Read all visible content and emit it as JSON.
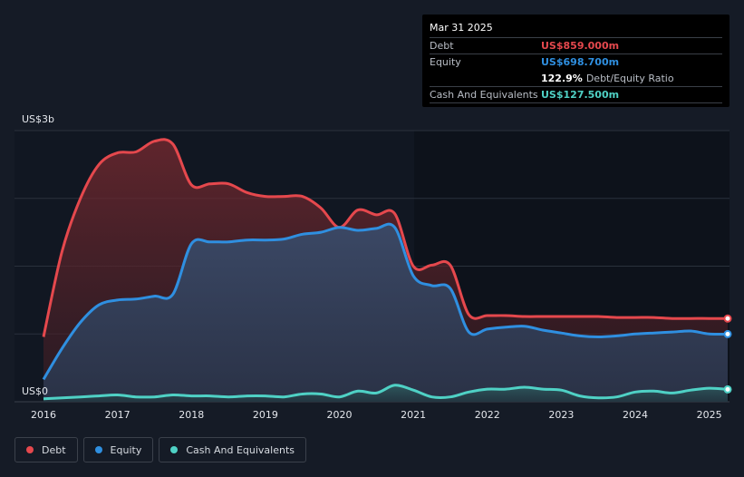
{
  "tooltip": {
    "date": "Mar 31 2025",
    "debt_label": "Debt",
    "debt_value": "US$859.000m",
    "equity_label": "Equity",
    "equity_value": "US$698.700m",
    "ratio_value": "122.9%",
    "ratio_text": "Debt/Equity Ratio",
    "cash_label": "Cash And Equivalents",
    "cash_value": "US$127.500m"
  },
  "legend": {
    "debt": "Debt",
    "equity": "Equity",
    "cash": "Cash And Equivalents"
  },
  "colors": {
    "debt": "#e5484d",
    "equity": "#2f8fe0",
    "cash": "#4fd1c5",
    "background": "#151b26"
  },
  "chart_data": {
    "type": "area",
    "y_unit": "US$ (billions)",
    "ylim": [
      0,
      2.8
    ],
    "y_ticks": [
      {
        "value": 0,
        "label": "US$0"
      },
      {
        "value": 2.8,
        "label": "US$3b"
      }
    ],
    "x_ticks": [
      "2016",
      "2017",
      "2018",
      "2019",
      "2020",
      "2021",
      "2022",
      "2023",
      "2024",
      "2025"
    ],
    "xlim": [
      2016.0,
      2025.25
    ],
    "grid": true,
    "legend_position": "bottom-left",
    "series": [
      {
        "name": "Debt",
        "color": "#e5484d",
        "points": [
          [
            2016.0,
            0.67
          ],
          [
            2016.25,
            1.55
          ],
          [
            2016.5,
            2.1
          ],
          [
            2016.75,
            2.45
          ],
          [
            2017.0,
            2.57
          ],
          [
            2017.25,
            2.58
          ],
          [
            2017.5,
            2.69
          ],
          [
            2017.75,
            2.66
          ],
          [
            2018.0,
            2.24
          ],
          [
            2018.25,
            2.25
          ],
          [
            2018.5,
            2.25
          ],
          [
            2018.75,
            2.16
          ],
          [
            2019.0,
            2.12
          ],
          [
            2019.25,
            2.12
          ],
          [
            2019.5,
            2.12
          ],
          [
            2019.75,
            2.0
          ],
          [
            2020.0,
            1.8
          ],
          [
            2020.25,
            1.98
          ],
          [
            2020.5,
            1.93
          ],
          [
            2020.75,
            1.94
          ],
          [
            2021.0,
            1.4
          ],
          [
            2021.25,
            1.41
          ],
          [
            2021.5,
            1.41
          ],
          [
            2021.75,
            0.9
          ],
          [
            2022.0,
            0.89
          ],
          [
            2022.25,
            0.89
          ],
          [
            2022.5,
            0.88
          ],
          [
            2022.75,
            0.88
          ],
          [
            2023.0,
            0.88
          ],
          [
            2023.25,
            0.88
          ],
          [
            2023.5,
            0.88
          ],
          [
            2023.75,
            0.87
          ],
          [
            2024.0,
            0.87
          ],
          [
            2024.25,
            0.87
          ],
          [
            2024.5,
            0.86
          ],
          [
            2024.75,
            0.86
          ],
          [
            2025.0,
            0.86
          ],
          [
            2025.25,
            0.859
          ]
        ]
      },
      {
        "name": "Equity",
        "color": "#2f8fe0",
        "points": [
          [
            2016.0,
            0.23
          ],
          [
            2016.25,
            0.55
          ],
          [
            2016.5,
            0.82
          ],
          [
            2016.75,
            1.0
          ],
          [
            2017.0,
            1.05
          ],
          [
            2017.25,
            1.06
          ],
          [
            2017.5,
            1.09
          ],
          [
            2017.75,
            1.11
          ],
          [
            2018.0,
            1.63
          ],
          [
            2018.25,
            1.65
          ],
          [
            2018.5,
            1.65
          ],
          [
            2018.75,
            1.67
          ],
          [
            2019.0,
            1.67
          ],
          [
            2019.25,
            1.68
          ],
          [
            2019.5,
            1.73
          ],
          [
            2019.75,
            1.75
          ],
          [
            2020.0,
            1.8
          ],
          [
            2020.25,
            1.77
          ],
          [
            2020.5,
            1.79
          ],
          [
            2020.75,
            1.8
          ],
          [
            2021.0,
            1.3
          ],
          [
            2021.25,
            1.2
          ],
          [
            2021.5,
            1.17
          ],
          [
            2021.75,
            0.72
          ],
          [
            2022.0,
            0.75
          ],
          [
            2022.25,
            0.77
          ],
          [
            2022.5,
            0.78
          ],
          [
            2022.75,
            0.74
          ],
          [
            2023.0,
            0.71
          ],
          [
            2023.25,
            0.68
          ],
          [
            2023.5,
            0.67
          ],
          [
            2023.75,
            0.68
          ],
          [
            2024.0,
            0.7
          ],
          [
            2024.25,
            0.71
          ],
          [
            2024.5,
            0.72
          ],
          [
            2024.75,
            0.73
          ],
          [
            2025.0,
            0.7
          ],
          [
            2025.25,
            0.6987
          ]
        ]
      },
      {
        "name": "Cash And Equivalents",
        "color": "#4fd1c5",
        "points": [
          [
            2016.0,
            0.03
          ],
          [
            2016.25,
            0.04
          ],
          [
            2016.5,
            0.05
          ],
          [
            2016.75,
            0.06
          ],
          [
            2017.0,
            0.07
          ],
          [
            2017.25,
            0.05
          ],
          [
            2017.5,
            0.05
          ],
          [
            2017.75,
            0.07
          ],
          [
            2018.0,
            0.06
          ],
          [
            2018.25,
            0.06
          ],
          [
            2018.5,
            0.05
          ],
          [
            2018.75,
            0.06
          ],
          [
            2019.0,
            0.06
          ],
          [
            2019.25,
            0.05
          ],
          [
            2019.5,
            0.08
          ],
          [
            2019.75,
            0.08
          ],
          [
            2020.0,
            0.05
          ],
          [
            2020.25,
            0.11
          ],
          [
            2020.5,
            0.09
          ],
          [
            2020.75,
            0.17
          ],
          [
            2021.0,
            0.12
          ],
          [
            2021.25,
            0.05
          ],
          [
            2021.5,
            0.05
          ],
          [
            2021.75,
            0.1
          ],
          [
            2022.0,
            0.13
          ],
          [
            2022.25,
            0.13
          ],
          [
            2022.5,
            0.15
          ],
          [
            2022.75,
            0.13
          ],
          [
            2023.0,
            0.12
          ],
          [
            2023.25,
            0.06
          ],
          [
            2023.5,
            0.04
          ],
          [
            2023.75,
            0.05
          ],
          [
            2024.0,
            0.1
          ],
          [
            2024.25,
            0.11
          ],
          [
            2024.5,
            0.09
          ],
          [
            2024.75,
            0.12
          ],
          [
            2025.0,
            0.14
          ],
          [
            2025.25,
            0.1275
          ]
        ]
      }
    ]
  }
}
